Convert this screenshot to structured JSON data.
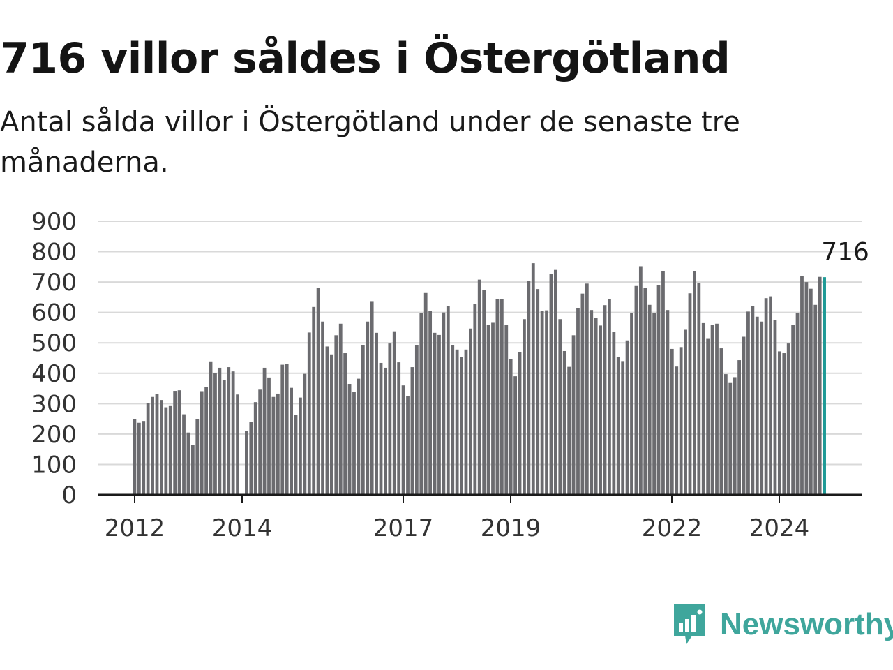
{
  "title": "716 villor såldes i Östergötland",
  "subtitle": "Antal sålda villor i Östergötland under de senaste tre månaderna.",
  "brand": {
    "name": "Newsworthy",
    "color": "#3fa69c"
  },
  "colors": {
    "bar": "#6b6b6f",
    "highlight": "#1f9a96",
    "grid": "#d9d9d9",
    "axis": "#1a1a1a"
  },
  "chart_data": {
    "type": "bar",
    "title": "716 villor såldes i Östergötland",
    "subtitle": "Antal sålda villor i Östergötland under de senaste tre månaderna.",
    "xlabel": "",
    "ylabel": "",
    "ylim": [
      0,
      900
    ],
    "yticks": [
      0,
      100,
      200,
      300,
      400,
      500,
      600,
      700,
      800,
      900
    ],
    "xtick_labels": [
      "2012",
      "2014",
      "2017",
      "2019",
      "2022",
      "2024"
    ],
    "grid": true,
    "legend": "none",
    "highlight_label": "716",
    "values": [
      250,
      237,
      243,
      302,
      322,
      332,
      312,
      288,
      292,
      342,
      344,
      265,
      205,
      163,
      248,
      341,
      355,
      439,
      400,
      418,
      378,
      420,
      406,
      330,
      null,
      210,
      240,
      305,
      346,
      418,
      386,
      322,
      333,
      428,
      430,
      352,
      262,
      320,
      398,
      534,
      618,
      680,
      570,
      488,
      462,
      525,
      563,
      466,
      365,
      338,
      382,
      492,
      570,
      635,
      533,
      434,
      418,
      498,
      538,
      436,
      360,
      325,
      420,
      492,
      598,
      664,
      605,
      533,
      526,
      600,
      622,
      493,
      478,
      453,
      478,
      547,
      628,
      708,
      673,
      560,
      566,
      643,
      643,
      560,
      447,
      390,
      470,
      578,
      704,
      762,
      677,
      606,
      607,
      726,
      740,
      578,
      473,
      421,
      525,
      614,
      662,
      695,
      608,
      582,
      557,
      624,
      645,
      536,
      454,
      440,
      508,
      597,
      687,
      752,
      680,
      625,
      597,
      690,
      736,
      608,
      480,
      422,
      486,
      543,
      663,
      735,
      697,
      565,
      513,
      558,
      563,
      482,
      397,
      368,
      387,
      443,
      520,
      603,
      620,
      586,
      570,
      647,
      653,
      575,
      472,
      466,
      498,
      560,
      599,
      720,
      700,
      678,
      625,
      717,
      716
    ]
  }
}
